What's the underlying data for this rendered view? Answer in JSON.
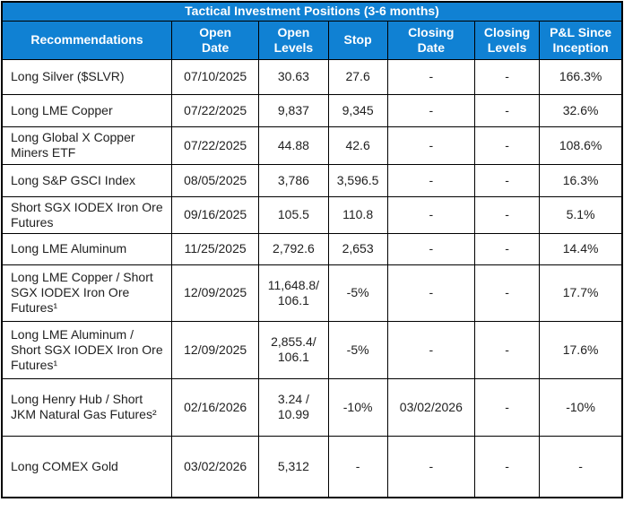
{
  "title": "Tactical Investment Positions (3-6 months)",
  "colors": {
    "header_background": "#1081d3",
    "header_text": "#ffffff",
    "body_text": "#212121",
    "grid_border": "#000000"
  },
  "table": {
    "columns": [
      "Recommendations",
      "Open\nDate",
      "Open\nLevels",
      "Stop",
      "Closing\nDate",
      "Closing\nLevels",
      "P&L Since\nInception"
    ],
    "rows": [
      {
        "recommendation": "Long Silver ($SLVR)",
        "open_date": "07/10/2025",
        "open_levels": "30.63",
        "stop": "27.6",
        "closing_date": "-",
        "closing_levels": "-",
        "pnl": "166.3%"
      },
      {
        "recommendation": "Long LME Copper",
        "open_date": "07/22/2025",
        "open_levels": "9,837",
        "stop": "9,345",
        "closing_date": "-",
        "closing_levels": "-",
        "pnl": "32.6%"
      },
      {
        "recommendation": "Long Global X Copper Miners ETF",
        "open_date": "07/22/2025",
        "open_levels": "44.88",
        "stop": "42.6",
        "closing_date": "-",
        "closing_levels": "-",
        "pnl": "108.6%"
      },
      {
        "recommendation": "Long S&P GSCI Index",
        "open_date": "08/05/2025",
        "open_levels": "3,786",
        "stop": "3,596.5",
        "closing_date": "-",
        "closing_levels": "-",
        "pnl": "16.3%"
      },
      {
        "recommendation": "Short SGX IODEX Iron Ore Futures",
        "open_date": "09/16/2025",
        "open_levels": "105.5",
        "stop": "110.8",
        "closing_date": "-",
        "closing_levels": "-",
        "pnl": "5.1%"
      },
      {
        "recommendation": "Long LME Aluminum",
        "open_date": "11/25/2025",
        "open_levels": "2,792.6",
        "stop": "2,653",
        "closing_date": "-",
        "closing_levels": "-",
        "pnl": "14.4%"
      },
      {
        "recommendation": "Long LME Copper / Short SGX IODEX Iron Ore Futures¹",
        "open_date": "12/09/2025",
        "open_levels": "11,648.8/\n106.1",
        "stop": "-5%",
        "closing_date": "-",
        "closing_levels": "-",
        "pnl": "17.7%"
      },
      {
        "recommendation": "Long LME Aluminum / Short SGX IODEX Iron Ore Futures¹",
        "open_date": "12/09/2025",
        "open_levels": "2,855.4/\n106.1",
        "stop": "-5%",
        "closing_date": "-",
        "closing_levels": "-",
        "pnl": "17.6%"
      },
      {
        "recommendation": "Long Henry Hub / Short JKM Natural Gas Futures²",
        "open_date": "02/16/2026",
        "open_levels": "3.24 /\n10.99",
        "stop": "-10%",
        "closing_date": "03/02/2026",
        "closing_levels": "-",
        "pnl": "-10%"
      },
      {
        "recommendation": "Long COMEX Gold",
        "open_date": "03/02/2026",
        "open_levels": "5,312",
        "stop": "-",
        "closing_date": "-",
        "closing_levels": "-",
        "pnl": "-"
      }
    ]
  }
}
